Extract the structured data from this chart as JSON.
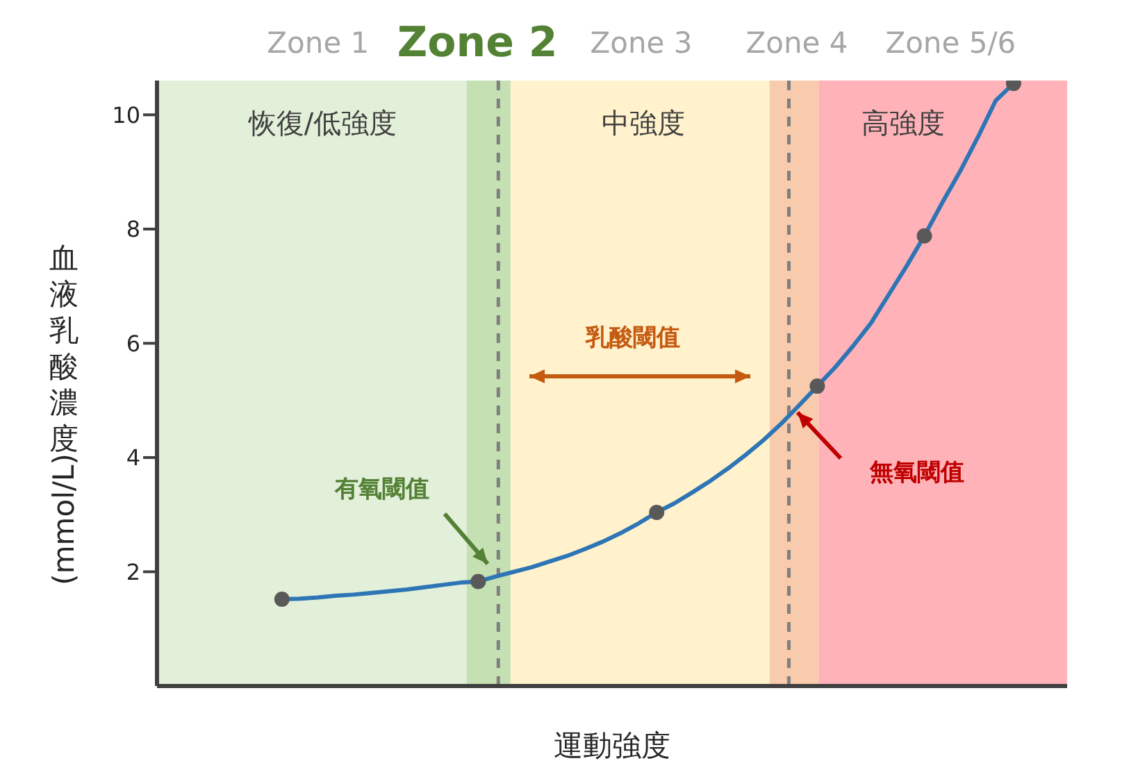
{
  "chart_data": {
    "type": "line",
    "xlabel": "運動強度",
    "ylabel": "血液乳酸濃度(mmol/L)",
    "categories": [
      null,
      null,
      null,
      null,
      null,
      null,
      null,
      null,
      null,
      null,
      null,
      null,
      null,
      null,
      null,
      null,
      null,
      null,
      null,
      null,
      null,
      null,
      null,
      null,
      null,
      null,
      null,
      null,
      null,
      null,
      null,
      null,
      null,
      null,
      null,
      null,
      null,
      null,
      null,
      null,
      null,
      null,
      null,
      null,
      null,
      null,
      null,
      null,
      null,
      null,
      null,
      null
    ],
    "series": [
      {
        "type": "line",
        "color": "#2e75b6",
        "values": [
          null,
          null,
          null,
          null,
          null,
          null,
          null,
          1.52,
          1.53,
          1.55,
          1.58,
          1.6,
          1.63,
          1.66,
          1.69,
          1.73,
          1.77,
          1.81,
          1.83,
          1.92,
          2.0,
          2.08,
          2.18,
          2.28,
          2.4,
          2.53,
          2.68,
          2.85,
          3.04,
          3.2,
          3.39,
          3.59,
          3.81,
          4.05,
          4.31,
          4.6,
          4.92,
          5.25,
          5.58,
          5.95,
          6.35,
          6.85,
          7.35,
          7.88,
          8.46,
          9.01,
          9.61,
          10.25,
          10.55,
          null,
          null,
          null
        ]
      },
      {
        "type": "scatter",
        "color": "#595959",
        "values": [
          null,
          null,
          null,
          null,
          null,
          null,
          null,
          1.52,
          null,
          null,
          null,
          null,
          null,
          null,
          null,
          null,
          null,
          null,
          1.83,
          null,
          null,
          null,
          null,
          null,
          null,
          null,
          null,
          null,
          3.04,
          null,
          null,
          null,
          null,
          null,
          null,
          null,
          null,
          5.25,
          null,
          null,
          null,
          null,
          null,
          7.88,
          null,
          null,
          null,
          null,
          10.55,
          null,
          null,
          null
        ]
      }
    ],
    "line_style": "solid",
    "ylim": [
      0,
      10.6
    ],
    "yticks": [
      2,
      4,
      6,
      8,
      10
    ],
    "tick_labels": "y",
    "grid": false,
    "legend": false,
    "annotations": [
      "恢復/低強度",
      "中強度",
      "高強度",
      "乳酸閾值",
      "有氧閾值",
      "無氧閾值",
      "Zone 1",
      "Zone 2",
      "Zone 3",
      "Zone 4",
      "Zone 5/6"
    ]
  }
}
